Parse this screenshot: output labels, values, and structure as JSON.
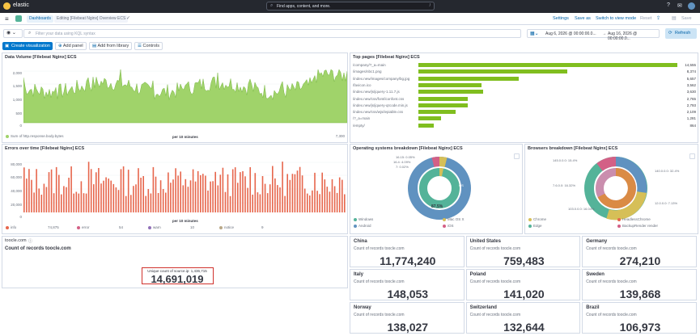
{
  "topbar": {
    "brand": "elastic",
    "search_placeholder": "Find apps, content, and more.",
    "shortcut": "/"
  },
  "navbar": {
    "crumb_dashboards": "Dashboards",
    "crumb_current": "Editing [Filebeat Nginx] Overview ECS",
    "settings": "Settings",
    "save_as": "Save as",
    "switch_view": "Switch to view mode",
    "reset": "Reset",
    "save": "Save"
  },
  "query": {
    "placeholder": "Filter your data using KQL syntax",
    "date_start": "Aug 6, 2026 @ 00:00:00.0...",
    "arrow": "→",
    "date_end": "Aug 16, 2026 @ 00:00:00.0...",
    "refresh": "Refresh"
  },
  "toolbar": {
    "create": "Create visualization",
    "add_panel": "Add panel",
    "add_library": "Add from library",
    "controls": "Controls"
  },
  "panels": {
    "volume": {
      "title": "Data Volume [Filebeat Nginx] ECS",
      "y_ticks": [
        "2,000",
        "1,500",
        "1,000",
        "500",
        "0"
      ],
      "xlabel": "per 10 minutes",
      "legend": "Sum of http.response.body.bytes",
      "legend_value": "7,300",
      "color": "#a0d36a"
    },
    "top_pages": {
      "title": "Top pages [Filebeat Nginx] ECS",
      "color": "#80be1f"
    },
    "errors": {
      "title": "Errors over time [Filebeat Nginx] ECS",
      "y_ticks": [
        "80,000",
        "60,000",
        "40,000",
        "20,000",
        "0"
      ],
      "xlabel": "per 10 minutes",
      "legend": [
        {
          "label": "info",
          "value": "74,875",
          "color": "#e7664c"
        },
        {
          "label": "error",
          "value": "54",
          "color": "#d36086"
        },
        {
          "label": "warn",
          "value": "10",
          "color": "#9170b8"
        },
        {
          "label": "notice",
          "value": "9",
          "color": "#b9a888"
        }
      ]
    },
    "os": {
      "title": "Operating systems breakdown [Filebeat Nginx] ECS",
      "slice_labels": [
        "16.15: 0.05%",
        "16.4: 4.09%",
        "7: 0.02%"
      ],
      "outer_label": "OS",
      "center_label": "87.5%",
      "legend": [
        {
          "label": "Windows",
          "color": "#54b399"
        },
        {
          "label": "Mac OS X",
          "color": "#d6bf57"
        },
        {
          "label": "Android",
          "color": "#6092c0"
        },
        {
          "label": "iOS",
          "color": "#d36086"
        }
      ]
    },
    "browsers": {
      "title": "Browsers breakdown [Filebeat Nginx] ECS",
      "labels": [
        "145.0.0.0: 15.4%",
        "140.0.0.0: 32.4%",
        "7.6.0.0: 16.32%",
        "103.0.0.0: 16.04%",
        "12.0.0.0: 7.13%"
      ],
      "legend": [
        {
          "label": "Chrome",
          "color": "#d6bf57"
        },
        {
          "label": "HeadlessChrome",
          "color": "#e7664c"
        },
        {
          "label": "Edge",
          "color": "#54b399"
        },
        {
          "label": "BackupRender render",
          "color": "#d36086"
        }
      ]
    },
    "unique": {
      "domain": "toocle.com",
      "title": "Count of records toocle.com",
      "label": "Unique count of source.ip: 1,436,715",
      "value": "14,691,019"
    }
  },
  "chart_data": [
    {
      "type": "bar",
      "title": "Top pages [Filebeat Nginx] ECS",
      "categories": [
        "/company/?_a=main",
        "/images/nbc1.png",
        "/index.new/images/company/bg.jpg",
        "/favicon.ico",
        "/index.new/js/jquery-1.11.7.js",
        "/index.new/css/font/iconfont.css",
        "/index.new/js/jquery-qrcode.min.js",
        "/index.new/css/wjs/iepiable.css",
        "/?_a=main",
        "/empty/"
      ],
      "values": [
        14555,
        8374,
        5657,
        3562,
        3630,
        2765,
        2793,
        2109,
        1281,
        864
      ],
      "value_labels": [
        "14,555",
        "8,374",
        "5,657",
        "3,562",
        "3,630",
        "2,765",
        "2,793",
        "2,109",
        "1,281",
        "864"
      ]
    }
  ],
  "metrics": [
    {
      "country": "China",
      "sub": "Count of records toocle.com",
      "value": "11,774,240"
    },
    {
      "country": "United States",
      "sub": "Count of records toocle.com",
      "value": "759,483"
    },
    {
      "country": "Germany",
      "sub": "Count of records toocle.com",
      "value": "274,210"
    },
    {
      "country": "Italy",
      "sub": "Count of records toocle.com",
      "value": "148,053"
    },
    {
      "country": "Poland",
      "sub": "Count of records toocle.com",
      "value": "141,020"
    },
    {
      "country": "Sweden",
      "sub": "Count of records toocle.com",
      "value": "139,868"
    },
    {
      "country": "Norway",
      "sub": "Count of records toocle.com",
      "value": "138,027"
    },
    {
      "country": "Switzerland",
      "sub": "Count of records toocle.com",
      "value": "132,644"
    },
    {
      "country": "Brazil",
      "sub": "Count of records toocle.com",
      "value": "106,973"
    }
  ]
}
